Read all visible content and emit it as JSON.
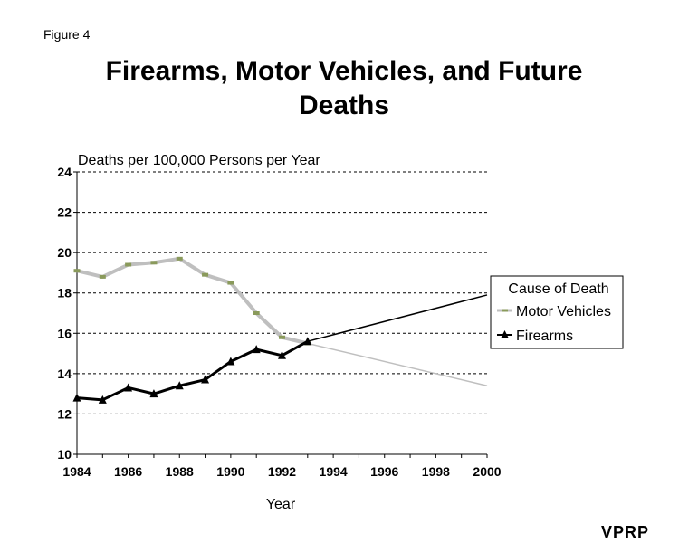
{
  "figure_label": "Figure 4",
  "title_line1": "Firearms, Motor Vehicles, and Future",
  "title_line2": "Deaths",
  "watermark": "VPRP",
  "chart_data": {
    "type": "line",
    "ylabel": "Deaths per 100,000 Persons per Year",
    "xlabel": "Year",
    "xlim": [
      1984,
      2000
    ],
    "ylim": [
      10,
      24
    ],
    "x_ticks": [
      1984,
      1986,
      1988,
      1990,
      1992,
      1994,
      1996,
      1998,
      2000
    ],
    "y_ticks": [
      10,
      12,
      14,
      16,
      18,
      20,
      22,
      24
    ],
    "grid": "horizontal dashed",
    "legend": {
      "title": "Cause of Death",
      "placement": "right"
    },
    "series": [
      {
        "name": "Motor Vehicles",
        "color": "#bfbfbf",
        "marker_color": "#8a9a5b",
        "marker": "dash",
        "x": [
          1984,
          1985,
          1986,
          1987,
          1988,
          1989,
          1990,
          1991,
          1992,
          1993
        ],
        "values": [
          19.1,
          18.8,
          19.4,
          19.5,
          19.7,
          18.9,
          18.5,
          17.0,
          15.8,
          15.5
        ],
        "projection": {
          "x": [
            1993,
            2000
          ],
          "values": [
            15.5,
            13.4
          ]
        }
      },
      {
        "name": "Firearms",
        "color": "#000000",
        "marker": "triangle",
        "x": [
          1984,
          1985,
          1986,
          1987,
          1988,
          1989,
          1990,
          1991,
          1992,
          1993
        ],
        "values": [
          12.8,
          12.7,
          13.3,
          13.0,
          13.4,
          13.7,
          14.6,
          15.2,
          14.9,
          15.6
        ],
        "projection": {
          "x": [
            1993,
            2000
          ],
          "values": [
            15.6,
            17.9
          ]
        }
      }
    ]
  }
}
